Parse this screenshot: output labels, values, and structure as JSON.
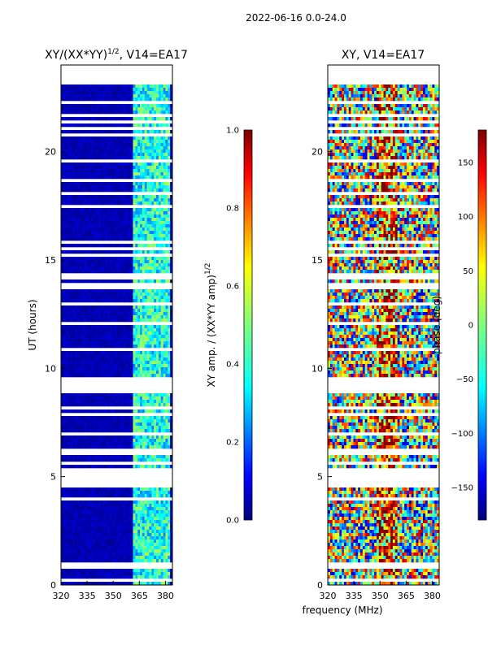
{
  "suptitle": "2022-06-16 0.0-24.0",
  "xlabel_shared": "frequency (MHz)",
  "chart_data": [
    {
      "type": "heatmap",
      "title": "XY/(XX*YY)",
      "title_sup": "1/2",
      "title_suffix": ", V14=EA17",
      "xlabel": "",
      "ylabel": "UT (hours)",
      "xlim": [
        320,
        384
      ],
      "ylim": [
        0,
        24
      ],
      "xticks": [
        "320",
        "335",
        "350",
        "365",
        "380"
      ],
      "xtick_values": [
        320,
        335,
        350,
        365,
        380
      ],
      "yticks": [
        "0",
        "5",
        "10",
        "15",
        "20"
      ],
      "ytick_values": [
        0,
        5,
        10,
        15,
        20
      ],
      "colorbar": {
        "label": "XY amp. / (XX*YY amp)",
        "label_sup": "1/2",
        "range": [
          0,
          1
        ],
        "ticks": [
          "0.0",
          "0.2",
          "0.4",
          "0.6",
          "0.8",
          "1.0"
        ],
        "tick_values": [
          0,
          0.2,
          0.4,
          0.6,
          0.8,
          1.0
        ]
      }
    },
    {
      "type": "heatmap",
      "title": "XY, V14=EA17",
      "xlabel": "frequency (MHz)",
      "ylabel": "",
      "xlim": [
        320,
        384
      ],
      "ylim": [
        0,
        24
      ],
      "xticks": [
        "320",
        "335",
        "350",
        "365",
        "380"
      ],
      "xtick_values": [
        320,
        335,
        350,
        365,
        380
      ],
      "yticks": [
        "0",
        "5",
        "10",
        "15",
        "20"
      ],
      "ytick_values": [
        0,
        5,
        10,
        15,
        20
      ],
      "colorbar": {
        "label": "phase (deg)",
        "range": [
          -180,
          180
        ],
        "ticks": [
          "−150",
          "−100",
          "−50",
          "0",
          "50",
          "100",
          "150"
        ],
        "tick_values": [
          -150,
          -100,
          -50,
          0,
          50,
          100,
          150
        ]
      }
    }
  ],
  "colors": {
    "jet": [
      "#00007f",
      "#0000ff",
      "#007fff",
      "#00ffff",
      "#7fff7f",
      "#ffff00",
      "#ff7f00",
      "#ff0000",
      "#7f0000"
    ]
  }
}
